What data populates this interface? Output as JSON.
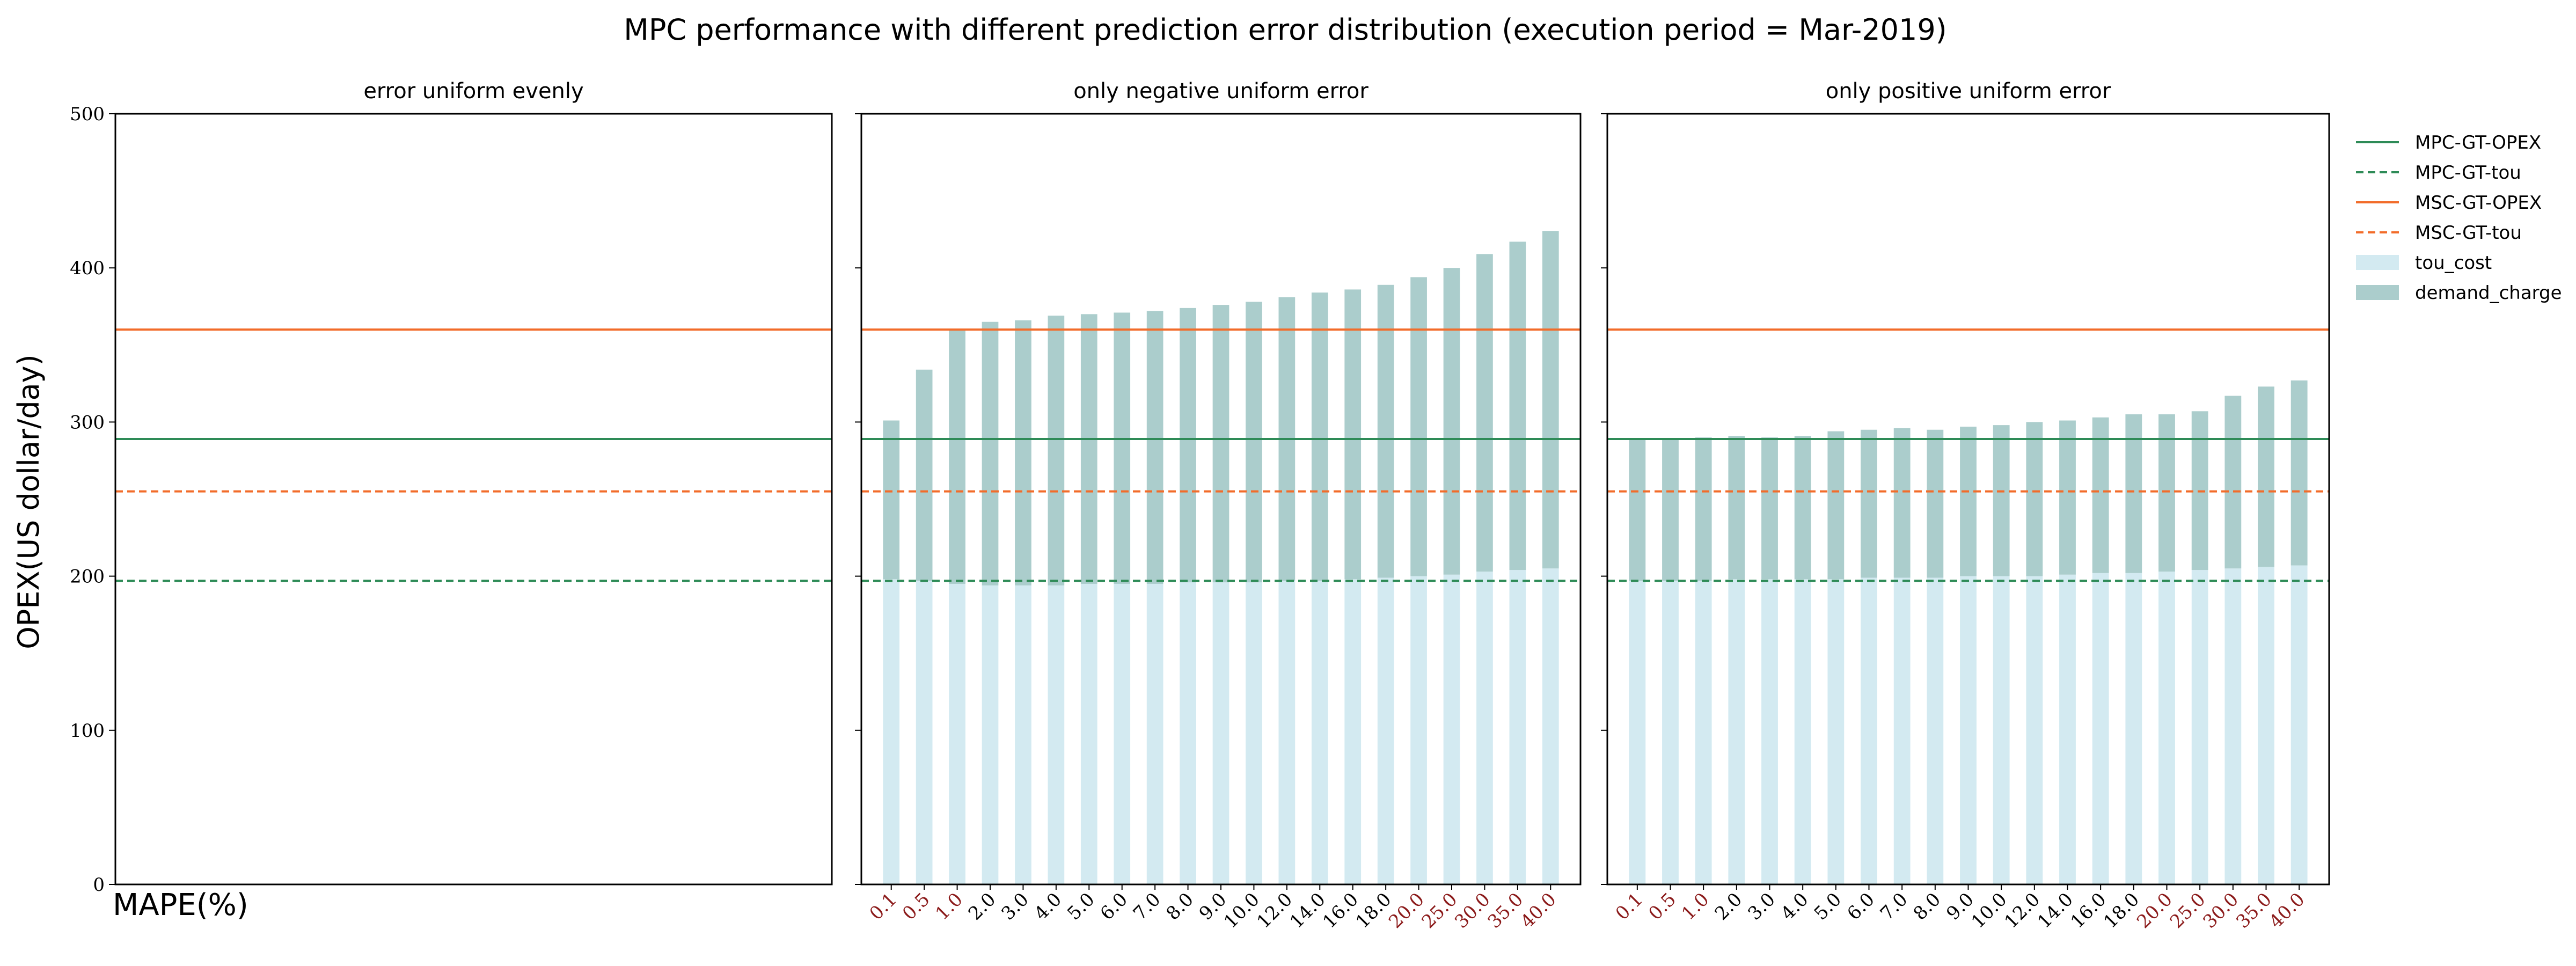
{
  "title": "MPC performance with different prediction error distribution (execution period = Mar-2019)",
  "ylabel": "OPEX(US dollar/day)",
  "xlabel": "MAPE(%)",
  "colors": {
    "mpc": "#2e8b57",
    "msc": "#f26c2a",
    "tou_cost": "#d3eaf1",
    "demand_charge": "#abcdcc",
    "tick_red": "#8b1a1a",
    "tick_black": "#000000"
  },
  "legend": [
    {
      "label": "MPC-GT-OPEX",
      "kind": "solid-line",
      "color": "#2e8b57"
    },
    {
      "label": "MPC-GT-tou",
      "kind": "dashed-line",
      "color": "#2e8b57"
    },
    {
      "label": "MSC-GT-OPEX",
      "kind": "solid-line",
      "color": "#f26c2a"
    },
    {
      "label": "MSC-GT-tou",
      "kind": "dashed-line",
      "color": "#f26c2a"
    },
    {
      "label": "tou_cost",
      "kind": "patch",
      "color": "#d3eaf1"
    },
    {
      "label": "demand_charge",
      "kind": "patch",
      "color": "#abcdcc"
    }
  ],
  "chart_data": [
    {
      "type": "bar",
      "title": "error uniform evenly",
      "ylim": [
        0,
        500
      ],
      "yticks": [
        0,
        100,
        200,
        300,
        400,
        500
      ],
      "categories": [],
      "series": [],
      "hlines": {
        "MPC-GT-OPEX": 289,
        "MPC-GT-tou": 197,
        "MSC-GT-OPEX": 360,
        "MSC-GT-tou": 255
      }
    },
    {
      "type": "bar",
      "stacked": true,
      "title": "only negative uniform error",
      "ylim": [
        0,
        500
      ],
      "categories": [
        "0.1",
        "0.5",
        "1.0",
        "2.0",
        "3.0",
        "4.0",
        "5.0",
        "6.0",
        "7.0",
        "8.0",
        "9.0",
        "10.0",
        "12.0",
        "14.0",
        "16.0",
        "18.0",
        "20.0",
        "25.0",
        "30.0",
        "35.0",
        "40.0"
      ],
      "red_ticks": [
        "0.1",
        "0.5",
        "1.0",
        "20.0",
        "25.0",
        "30.0",
        "35.0",
        "40.0"
      ],
      "series": [
        {
          "name": "tou_cost",
          "values": [
            198,
            197,
            195,
            194,
            194,
            194,
            195,
            195,
            195,
            196,
            196,
            196,
            197,
            197,
            198,
            199,
            200,
            201,
            203,
            204,
            205
          ]
        },
        {
          "name": "demand_charge",
          "values": [
            103,
            137,
            165,
            171,
            172,
            175,
            175,
            176,
            177,
            178,
            180,
            182,
            184,
            187,
            188,
            190,
            194,
            199,
            206,
            213,
            219
          ]
        }
      ],
      "hlines": {
        "MPC-GT-OPEX": 289,
        "MPC-GT-tou": 197,
        "MSC-GT-OPEX": 360,
        "MSC-GT-tou": 255
      }
    },
    {
      "type": "bar",
      "stacked": true,
      "title": "only positive uniform error",
      "ylim": [
        0,
        500
      ],
      "categories": [
        "0.1",
        "0.5",
        "1.0",
        "2.0",
        "3.0",
        "4.0",
        "5.0",
        "6.0",
        "7.0",
        "8.0",
        "9.0",
        "10.0",
        "12.0",
        "14.0",
        "16.0",
        "18.0",
        "20.0",
        "25.0",
        "30.0",
        "35.0",
        "40.0"
      ],
      "red_ticks": [
        "0.1",
        "0.5",
        "1.0",
        "20.0",
        "25.0",
        "30.0",
        "35.0",
        "40.0"
      ],
      "series": [
        {
          "name": "tou_cost",
          "values": [
            197,
            197,
            197,
            198,
            198,
            198,
            198,
            199,
            199,
            199,
            200,
            200,
            200,
            201,
            202,
            202,
            203,
            204,
            205,
            206,
            207
          ]
        },
        {
          "name": "demand_charge",
          "values": [
            92,
            92,
            93,
            93,
            92,
            93,
            96,
            96,
            97,
            96,
            97,
            98,
            100,
            100,
            101,
            103,
            102,
            103,
            112,
            117,
            120
          ]
        }
      ],
      "hlines": {
        "MPC-GT-OPEX": 289,
        "MPC-GT-tou": 197,
        "MSC-GT-OPEX": 360,
        "MSC-GT-tou": 255
      }
    }
  ]
}
